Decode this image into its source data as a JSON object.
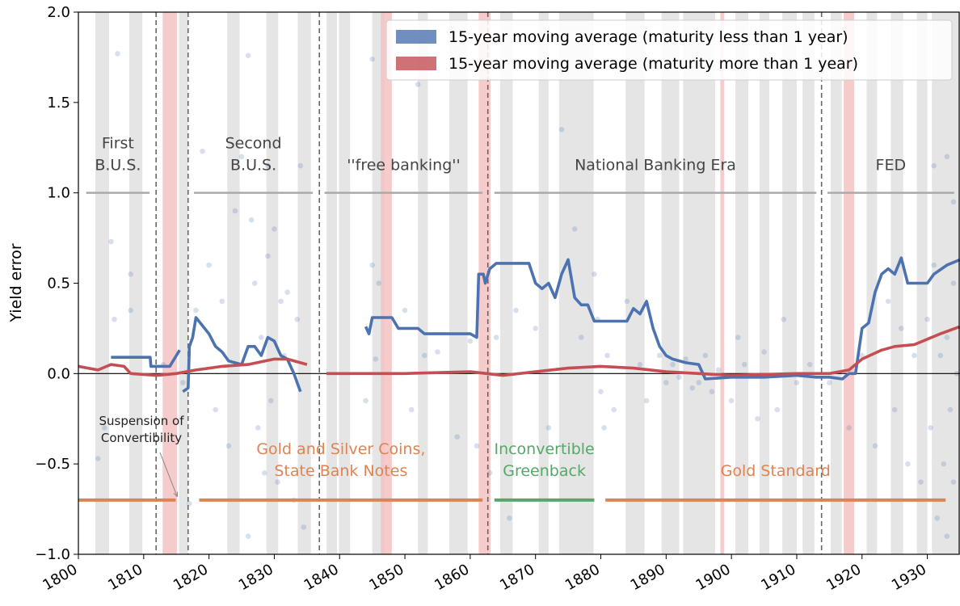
{
  "chart_data": {
    "type": "line",
    "ylabel": "Yield error",
    "xlim": [
      1800,
      1935
    ],
    "xticks": [
      1800,
      1810,
      1820,
      1830,
      1840,
      1850,
      1860,
      1870,
      1880,
      1890,
      1900,
      1910,
      1920,
      1930
    ],
    "ylim": [
      -1.0,
      2.0
    ],
    "yticks": [
      {
        "value": -1,
        "label": "−1.0"
      },
      {
        "value": -0.5,
        "label": "−0.5"
      },
      {
        "value": 0,
        "label": "0.0"
      },
      {
        "value": 0.5,
        "label": "0.5"
      },
      {
        "value": 1,
        "label": "1.0"
      },
      {
        "value": 1.5,
        "label": "1.5"
      },
      {
        "value": 2,
        "label": "2.0"
      }
    ],
    "hline": 0,
    "vlines": [
      1811.9,
      1816.8,
      1836.9,
      1862.7,
      1913.8
    ],
    "recessions": [
      [
        1802.6,
        1804.7
      ],
      [
        1807.8,
        1809.8
      ],
      [
        1815.4,
        1816.8
      ],
      [
        1822.8,
        1824.7
      ],
      [
        1828.8,
        1830.6
      ],
      [
        1833.6,
        1835.6
      ],
      [
        1838,
        1839.6
      ],
      [
        1839.9,
        1841.6
      ],
      [
        1845,
        1846.9
      ],
      [
        1852,
        1853.5
      ],
      [
        1856.8,
        1859.6
      ],
      [
        1864.6,
        1866.5
      ],
      [
        1870.5,
        1872
      ],
      [
        1873.6,
        1878.9
      ],
      [
        1883.8,
        1886.7
      ],
      [
        1889.3,
        1892
      ],
      [
        1892.6,
        1897.5
      ],
      [
        1900.6,
        1902.6
      ],
      [
        1904.3,
        1905.8
      ],
      [
        1907.8,
        1910
      ],
      [
        1910.9,
        1912.7
      ],
      [
        1915.2,
        1916.9
      ],
      [
        1920.7,
        1922.3
      ],
      [
        1924.4,
        1926.3
      ],
      [
        1928.4,
        1930
      ],
      [
        1930.7,
        1935
      ]
    ],
    "wars": [
      [
        1812.9,
        1815.1
      ],
      [
        1846.3,
        1848
      ],
      [
        1861.3,
        1863.1
      ],
      [
        1898.3,
        1898.9
      ],
      [
        1917.2,
        1918.8
      ]
    ],
    "legend": "upper right",
    "series": [
      {
        "name": "15-year moving average (maturity less than 1 year)",
        "color": "#4c72b0",
        "x": [
          1805,
          1811,
          1811.1,
          1814,
          1815.5,
          1815.8,
          1816,
          1816.8,
          1817,
          1817.5,
          1818,
          1820,
          1821,
          1822,
          1823,
          1825,
          1826,
          1827,
          1828,
          1829,
          1830,
          1831,
          1832,
          1833,
          1834,
          1839,
          1844,
          1844.5,
          1845,
          1848,
          1849,
          1852,
          1853,
          1860,
          1861,
          1861.3,
          1862,
          1862.3,
          1863,
          1864,
          1869,
          1870,
          1871,
          1872,
          1873,
          1874,
          1875,
          1876,
          1877,
          1878,
          1879,
          1884,
          1885,
          1886,
          1887,
          1888,
          1889,
          1890,
          1891,
          1893,
          1895,
          1896,
          1900,
          1905,
          1910,
          1913,
          1915,
          1917,
          1918,
          1919,
          1920,
          1921,
          1922,
          1923,
          1924,
          1925,
          1926,
          1927,
          1930,
          1931,
          1933,
          1935
        ],
        "values": [
          0.09,
          0.09,
          0.04,
          0.04,
          0.13,
          null,
          -0.1,
          -0.08,
          0.15,
          0.2,
          0.31,
          0.22,
          0.15,
          0.12,
          0.07,
          0.05,
          0.15,
          0.15,
          0.1,
          0.2,
          0.18,
          0.1,
          0.08,
          0.0,
          -0.1,
          null,
          0.26,
          0.22,
          0.31,
          0.31,
          0.25,
          0.25,
          0.22,
          0.22,
          0.2,
          0.55,
          0.55,
          0.5,
          0.58,
          0.61,
          0.61,
          0.5,
          0.47,
          0.5,
          0.42,
          0.55,
          0.63,
          0.42,
          0.38,
          0.38,
          0.29,
          0.29,
          0.36,
          0.33,
          0.4,
          0.25,
          0.15,
          0.1,
          0.08,
          0.06,
          0.05,
          -0.03,
          -0.02,
          -0.02,
          -0.01,
          -0.02,
          -0.02,
          -0.03,
          0.0,
          0.0,
          0.25,
          0.28,
          0.45,
          0.55,
          0.58,
          0.55,
          0.64,
          0.5,
          0.5,
          0.55,
          0.6,
          0.63
        ]
      },
      {
        "name": "15-year moving average (maturity more than 1 year)",
        "color": "#c44e52",
        "x": [
          1800,
          1803,
          1805,
          1807,
          1808,
          1812,
          1815,
          1818,
          1822,
          1826,
          1830,
          1832,
          1835,
          1836.5,
          1838,
          1850,
          1860,
          1865,
          1870,
          1875,
          1880,
          1885,
          1890,
          1895,
          1900,
          1910,
          1915,
          1918,
          1920,
          1923,
          1925,
          1928,
          1932,
          1935
        ],
        "values": [
          0.04,
          0.02,
          0.05,
          0.04,
          0.0,
          -0.01,
          0.0,
          0.02,
          0.04,
          0.05,
          0.08,
          0.08,
          0.05,
          null,
          0.0,
          0.0,
          0.01,
          -0.01,
          0.01,
          0.03,
          0.04,
          0.03,
          0.01,
          0.0,
          -0.01,
          0.0,
          0.0,
          0.02,
          0.08,
          0.13,
          0.15,
          0.16,
          0.22,
          0.26
        ]
      }
    ],
    "points": {
      "color": "#4c72b0",
      "x": [
        1805,
        1805.5,
        1806,
        1808,
        1808,
        1803,
        1804,
        1813,
        1816,
        1817,
        1818,
        1819,
        1820,
        1821,
        1822,
        1823,
        1824,
        1825,
        1826,
        1826.5,
        1827,
        1827.5,
        1828,
        1828.5,
        1829,
        1829.5,
        1830,
        1830.5,
        1831,
        1831.5,
        1832,
        1833,
        1833.5,
        1834,
        1834.5,
        1826,
        1829,
        1845,
        1845,
        1844,
        1845.5,
        1846,
        1850,
        1852,
        1851,
        1853,
        1855,
        1858,
        1860,
        1861,
        1863,
        1864,
        1866,
        1867,
        1870,
        1872,
        1874,
        1876,
        1877,
        1879,
        1879.5,
        1880,
        1880.5,
        1881,
        1882,
        1884,
        1886,
        1887,
        1889,
        1890,
        1891,
        1892,
        1893,
        1894,
        1895,
        1896,
        1897,
        1898,
        1900,
        1901,
        1902,
        1904,
        1905,
        1907,
        1908,
        1910,
        1912,
        1915,
        1918,
        1920,
        1922,
        1924,
        1925,
        1926,
        1927,
        1928,
        1929,
        1930,
        1930.5,
        1931,
        1931.5,
        1932,
        1932.5,
        1933,
        1933,
        1933.5,
        1934,
        1934,
        1934.5,
        1931,
        1933,
        1934
      ],
      "values": [
        0.73,
        0.3,
        1.77,
        0.55,
        0.35,
        -0.47,
        -0.3,
        0.05,
        -0.05,
        -0.72,
        0.35,
        1.23,
        0.6,
        -0.2,
        0.4,
        -0.4,
        0.9,
        1.2,
        -0.9,
        0.85,
        0.5,
        -0.3,
        0.2,
        -0.55,
        0.65,
        -0.15,
        0.8,
        -0.6,
        0.4,
        0.1,
        0.45,
        -0.7,
        0.3,
        1.15,
        -0.85,
        1.76,
        1.15,
        1.74,
        0.6,
        -0.15,
        0.08,
        0.5,
        0.35,
        1.6,
        -0.2,
        0.1,
        0.12,
        -0.35,
        0.18,
        -0.4,
        -0.55,
        0.2,
        -0.8,
        0.35,
        0.25,
        -0.3,
        1.35,
        0.8,
        0.2,
        0.55,
        0.3,
        -0.1,
        -0.3,
        0.1,
        -0.2,
        0.4,
        0.05,
        -0.15,
        0.1,
        -0.05,
        0.05,
        -0.02,
        0.08,
        -0.08,
        -0.05,
        0.1,
        -0.1,
        0.02,
        -0.15,
        0.2,
        0.05,
        -0.25,
        0.12,
        -0.2,
        0.3,
        -0.05,
        0.05,
        -0.05,
        -0.3,
        0.1,
        -0.4,
        0.4,
        -0.2,
        0.25,
        -0.5,
        0.1,
        -0.6,
        0.3,
        -0.3,
        0.6,
        -0.8,
        0.1,
        -0.5,
        0.2,
        -0.9,
        -0.2,
        0.5,
        -0.6,
        0.0,
        1.15,
        1.2,
        0.95
      ]
    },
    "eras": [
      {
        "label": [
          "First",
          "B.U.S."
        ],
        "start": 1801.2,
        "end": 1810.9
      },
      {
        "label": [
          "Second",
          "B.U.S."
        ],
        "start": 1817.7,
        "end": 1835.9
      },
      {
        "label": [
          "''free banking''"
        ],
        "start": 1837.7,
        "end": 1861.9
      },
      {
        "label": [
          "National Banking Era"
        ],
        "start": 1863.7,
        "end": 1913
      },
      {
        "label": [
          "FED"
        ],
        "start": 1914.7,
        "end": 1934.1
      }
    ],
    "era_level": 1.0,
    "regime_level": -0.7,
    "regimes": [
      {
        "label": [],
        "color": "#dd8452",
        "start": 1800,
        "end": 1814.9
      },
      {
        "label": [
          "Gold and Silver Coins,",
          "State Bank Notes"
        ],
        "color": "#dd8452",
        "start": 1818.5,
        "end": 1861.9
      },
      {
        "label": [
          "Inconvertible",
          "Greenback"
        ],
        "color": "#55a868",
        "start": 1863.7,
        "end": 1879
      },
      {
        "label": [
          "Gold Standard"
        ],
        "color": "#dd8452",
        "start": 1880.7,
        "end": 1932.8
      }
    ],
    "annotation": {
      "text": [
        "Suspension of",
        "Convertibility"
      ],
      "x": 1815,
      "y": -0.68
    }
  }
}
